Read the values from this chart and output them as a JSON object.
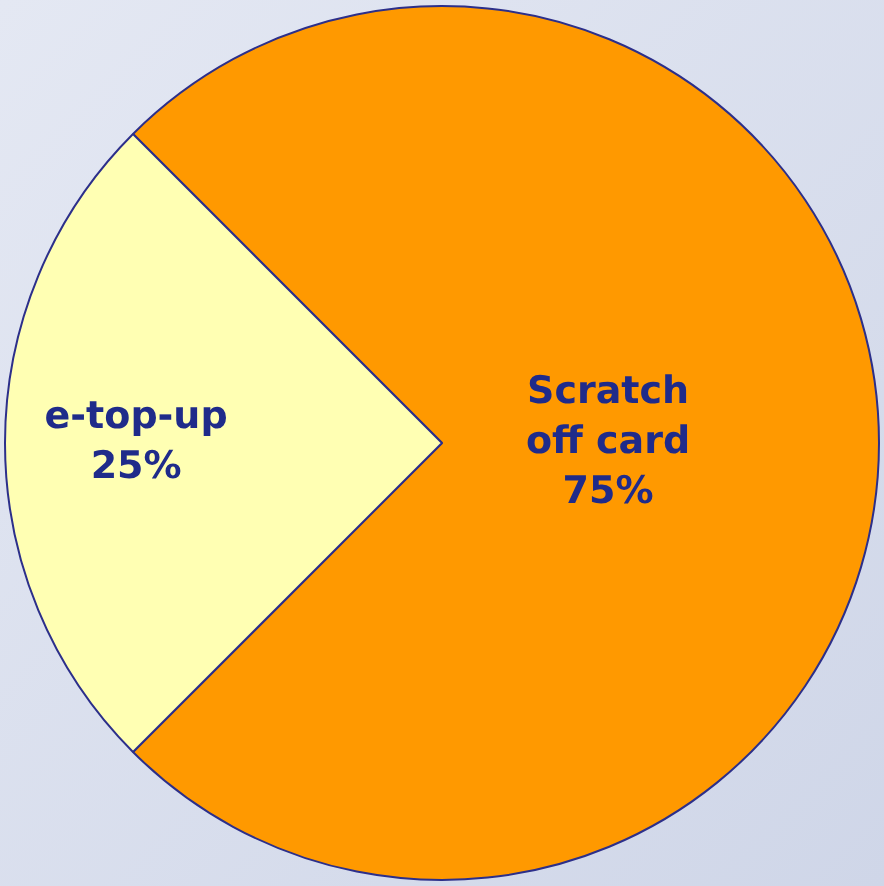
{
  "chart_data": {
    "type": "pie",
    "categories": [
      "Scratch off card",
      "e-top-up"
    ],
    "values": [
      75,
      25
    ],
    "colors": [
      "#ff9900",
      "#ffffb3"
    ],
    "value_labels": [
      "75%",
      "25%"
    ],
    "legend": false
  }
}
